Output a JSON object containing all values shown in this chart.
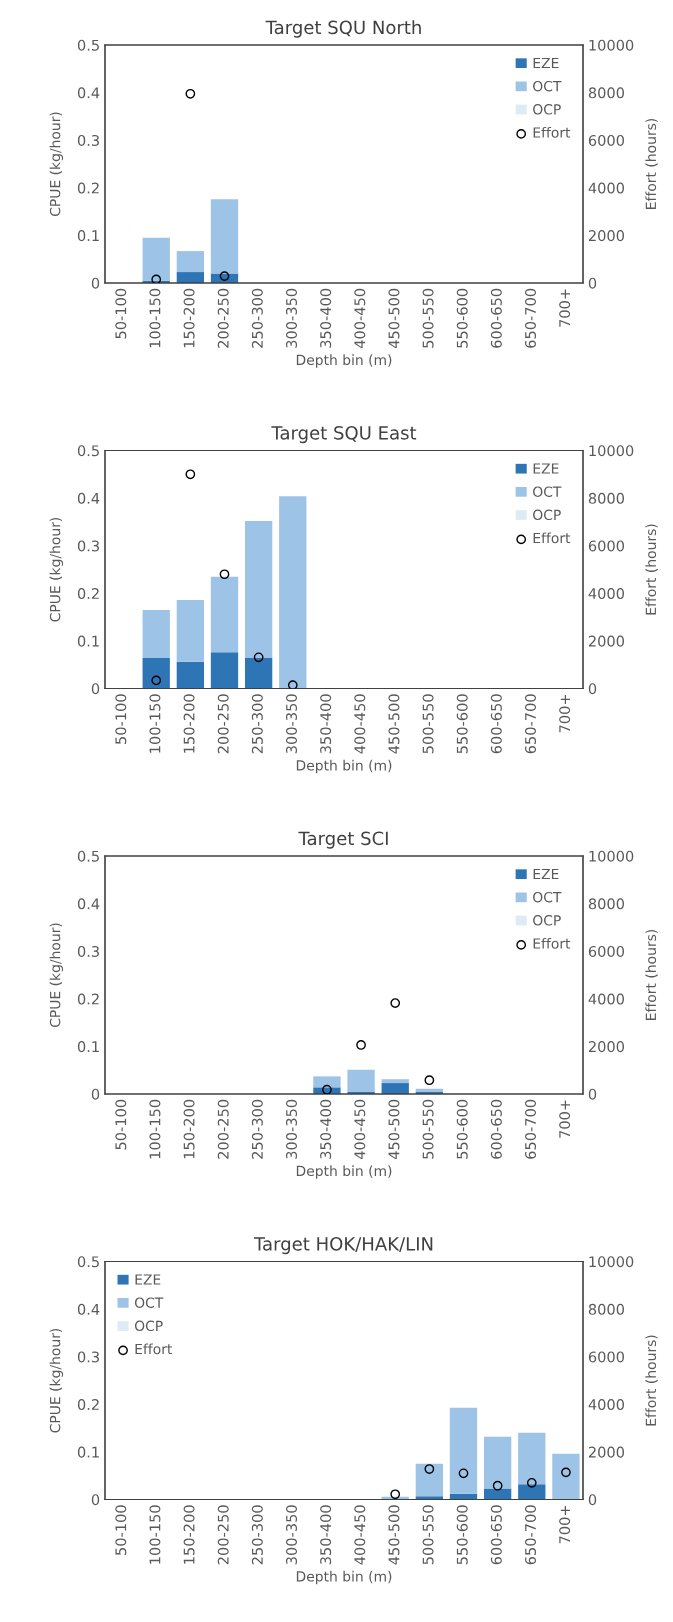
{
  "chart_data": [
    {
      "type": "bar",
      "title": "Target SQU North",
      "xlabel": "Depth bin (m)",
      "ylabel": "CPUE (kg/hour)",
      "y2label": "Effort (hours)",
      "stacked": true,
      "legend": "top right",
      "categories": [
        "50-100",
        "100-150",
        "150-200",
        "200-250",
        "250-300",
        "300-350",
        "350-400",
        "400-450",
        "450-500",
        "500-550",
        "550-600",
        "600-650",
        "650-700",
        "700+"
      ],
      "ylim": [
        0,
        0.5
      ],
      "yticks": [
        0,
        0.1,
        0.2,
        0.3,
        0.4,
        0.5
      ],
      "y2lim": [
        0,
        10000
      ],
      "y2ticks": [
        0,
        2000,
        4000,
        6000,
        8000,
        10000
      ],
      "series": [
        {
          "name": "EZE",
          "color": "#2e75b6",
          "values": [
            0,
            0.005,
            0.023,
            0.02,
            0,
            0,
            0,
            0,
            0,
            0,
            0,
            0,
            0,
            0
          ]
        },
        {
          "name": "OCT",
          "color": "#9dc3e6",
          "values": [
            0,
            0.09,
            0.044,
            0.156,
            0,
            0,
            0,
            0,
            0,
            0,
            0,
            0,
            0,
            0
          ]
        },
        {
          "name": "OCP",
          "color": "#deebf7",
          "values": [
            0,
            0,
            0,
            0,
            0,
            0,
            0,
            0,
            0,
            0,
            0,
            0,
            0,
            0
          ]
        },
        {
          "name": "Effort",
          "type": "scatter",
          "axis": "y2",
          "marker": "circle",
          "color": "#000000",
          "values": [
            null,
            150,
            7950,
            290,
            null,
            null,
            null,
            null,
            null,
            null,
            null,
            null,
            null,
            null
          ]
        }
      ]
    },
    {
      "type": "bar",
      "title": "Target SQU East",
      "xlabel": "Depth bin (m)",
      "ylabel": "CPUE (kg/hour)",
      "y2label": "Effort (hours)",
      "stacked": true,
      "legend": "top right",
      "categories": [
        "50-100",
        "100-150",
        "150-200",
        "200-250",
        "250-300",
        "300-350",
        "350-400",
        "400-450",
        "450-500",
        "500-550",
        "550-600",
        "600-650",
        "650-700",
        "700+"
      ],
      "ylim": [
        0,
        0.5
      ],
      "yticks": [
        0,
        0.1,
        0.2,
        0.3,
        0.4,
        0.5
      ],
      "y2lim": [
        0,
        10000
      ],
      "y2ticks": [
        0,
        2000,
        4000,
        6000,
        8000,
        10000
      ],
      "series": [
        {
          "name": "EZE",
          "color": "#2e75b6",
          "values": [
            0,
            0.064,
            0.056,
            0.076,
            0.064,
            0,
            0,
            0,
            0,
            0,
            0,
            0,
            0,
            0
          ]
        },
        {
          "name": "OCT",
          "color": "#9dc3e6",
          "values": [
            0,
            0.101,
            0.13,
            0.159,
            0.288,
            0.404,
            0,
            0,
            0,
            0,
            0,
            0,
            0,
            0
          ]
        },
        {
          "name": "OCP",
          "color": "#deebf7",
          "values": [
            0,
            0,
            0,
            0,
            0,
            0,
            0,
            0,
            0,
            0,
            0,
            0,
            0,
            0
          ]
        },
        {
          "name": "Effort",
          "type": "scatter",
          "axis": "y2",
          "marker": "circle",
          "color": "#000000",
          "values": [
            null,
            340,
            9000,
            4800,
            1310,
            140,
            null,
            null,
            null,
            null,
            null,
            null,
            null,
            null
          ]
        }
      ]
    },
    {
      "type": "bar",
      "title": "Target SCI",
      "xlabel": "Depth bin (m)",
      "ylabel": "CPUE (kg/hour)",
      "y2label": "Effort (hours)",
      "stacked": true,
      "legend": "top right",
      "categories": [
        "50-100",
        "100-150",
        "150-200",
        "200-250",
        "250-300",
        "300-350",
        "350-400",
        "400-450",
        "450-500",
        "500-550",
        "550-600",
        "600-650",
        "650-700",
        "700+"
      ],
      "ylim": [
        0,
        0.5
      ],
      "yticks": [
        0,
        0.1,
        0.2,
        0.3,
        0.4,
        0.5
      ],
      "y2lim": [
        0,
        10000
      ],
      "y2ticks": [
        0,
        2000,
        4000,
        6000,
        8000,
        10000
      ],
      "series": [
        {
          "name": "EZE",
          "color": "#2e75b6",
          "values": [
            0,
            0,
            0,
            0,
            0,
            0,
            0.014,
            0.005,
            0.023,
            0.005,
            0,
            0,
            0,
            0
          ]
        },
        {
          "name": "OCT",
          "color": "#9dc3e6",
          "values": [
            0,
            0,
            0,
            0,
            0,
            0,
            0.023,
            0.046,
            0.008,
            0.006,
            0,
            0,
            0,
            0
          ]
        },
        {
          "name": "OCP",
          "color": "#deebf7",
          "values": [
            0,
            0,
            0,
            0,
            0,
            0,
            0,
            0,
            0,
            0,
            0,
            0,
            0,
            0
          ]
        },
        {
          "name": "Effort",
          "type": "scatter",
          "axis": "y2",
          "marker": "circle",
          "color": "#000000",
          "values": [
            null,
            null,
            null,
            null,
            null,
            null,
            180,
            2060,
            3820,
            580,
            null,
            null,
            null,
            null
          ]
        }
      ]
    },
    {
      "type": "bar",
      "title": "Target HOK/HAK/LIN",
      "xlabel": "Depth bin (m)",
      "ylabel": "CPUE (kg/hour)",
      "y2label": "Effort (hours)",
      "stacked": true,
      "legend": "top left",
      "categories": [
        "50-100",
        "100-150",
        "150-200",
        "200-250",
        "250-300",
        "300-350",
        "350-400",
        "400-450",
        "450-500",
        "500-550",
        "550-600",
        "600-650",
        "650-700",
        "700+"
      ],
      "ylim": [
        0,
        0.5
      ],
      "yticks": [
        0,
        0.1,
        0.2,
        0.3,
        0.4,
        0.5
      ],
      "y2lim": [
        0,
        10000
      ],
      "y2ticks": [
        0,
        2000,
        4000,
        6000,
        8000,
        10000
      ],
      "series": [
        {
          "name": "EZE",
          "color": "#2e75b6",
          "values": [
            0,
            0,
            0,
            0,
            0,
            0,
            0,
            0,
            0,
            0.007,
            0.012,
            0.023,
            0.032,
            0
          ]
        },
        {
          "name": "OCT",
          "color": "#9dc3e6",
          "values": [
            0,
            0,
            0,
            0,
            0,
            0,
            0,
            0,
            0.006,
            0.068,
            0.181,
            0.109,
            0.108,
            0.096
          ]
        },
        {
          "name": "OCP",
          "color": "#deebf7",
          "values": [
            0,
            0,
            0,
            0,
            0,
            0,
            0,
            0,
            0,
            0,
            0,
            0,
            0,
            0
          ]
        },
        {
          "name": "Effort",
          "type": "scatter",
          "axis": "y2",
          "marker": "circle",
          "color": "#000000",
          "values": [
            null,
            null,
            null,
            null,
            null,
            null,
            null,
            null,
            220,
            1280,
            1100,
            580,
            700,
            1140
          ]
        }
      ]
    }
  ]
}
